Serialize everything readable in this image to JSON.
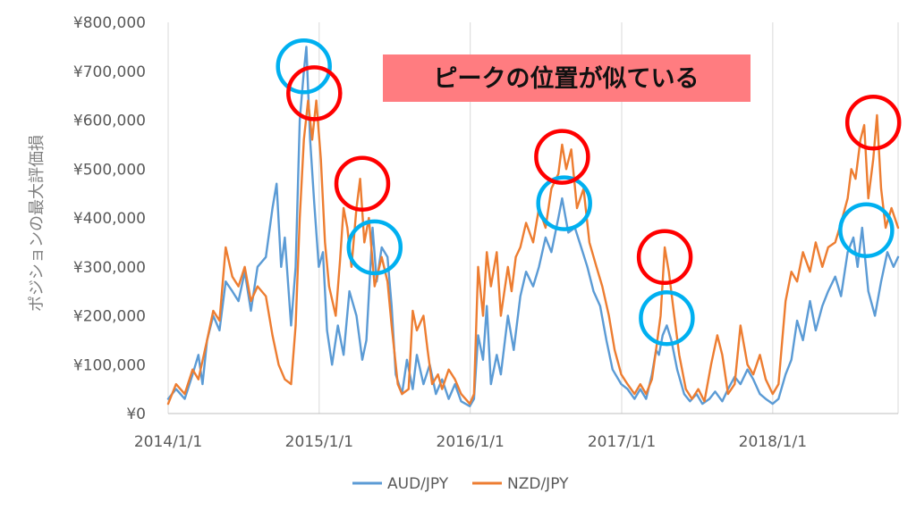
{
  "chart_data": {
    "type": "line",
    "ylabel": "ポジションの最大評価損",
    "xlabel": "",
    "x_ticks": [
      "2014/1/1",
      "2015/1/1",
      "2016/1/1",
      "2017/1/1",
      "2018/1/1"
    ],
    "x_range": [
      "2014/1/1",
      "2018/10/31"
    ],
    "y_ticks": [
      "¥0",
      "¥100,000",
      "¥200,000",
      "¥300,000",
      "¥400,000",
      "¥500,000",
      "¥600,000",
      "¥700,000",
      "¥800,000"
    ],
    "ylim": [
      0,
      800000
    ],
    "grid": "vertical-at-year-ticks",
    "legend": "bottom",
    "annotation": "ピークの位置が似ている",
    "colors": {
      "aud": "#5B9BD5",
      "nzd": "#ED7D31",
      "aud_circle": "#00B0F0",
      "nzd_circle": "#FF0000",
      "annotation_bg": "#FF7C80"
    },
    "series": [
      {
        "name": "AUD/JPY",
        "key": "aud",
        "points": [
          [
            "2014/1/1",
            30000
          ],
          [
            "2014/1/20",
            50000
          ],
          [
            "2014/2/10",
            30000
          ],
          [
            "2014/3/1",
            80000
          ],
          [
            "2014/3/15",
            120000
          ],
          [
            "2014/3/25",
            60000
          ],
          [
            "2014/4/5",
            150000
          ],
          [
            "2014/4/20",
            200000
          ],
          [
            "2014/5/5",
            170000
          ],
          [
            "2014/5/20",
            270000
          ],
          [
            "2014/6/5",
            250000
          ],
          [
            "2014/6/20",
            230000
          ],
          [
            "2014/7/5",
            290000
          ],
          [
            "2014/7/20",
            210000
          ],
          [
            "2014/8/5",
            300000
          ],
          [
            "2014/8/25",
            320000
          ],
          [
            "2014/9/10",
            420000
          ],
          [
            "2014/9/20",
            470000
          ],
          [
            "2014/10/1",
            300000
          ],
          [
            "2014/10/10",
            360000
          ],
          [
            "2014/10/25",
            180000
          ],
          [
            "2014/11/5",
            300000
          ],
          [
            "2014/11/15",
            600000
          ],
          [
            "2014/11/25",
            700000
          ],
          [
            "2014/12/1",
            750000
          ],
          [
            "2014/12/10",
            560000
          ],
          [
            "2014/12/20",
            430000
          ],
          [
            "2014/12/31",
            300000
          ],
          [
            "2015/1/10",
            330000
          ],
          [
            "2015/1/20",
            170000
          ],
          [
            "2015/2/1",
            100000
          ],
          [
            "2015/2/15",
            180000
          ],
          [
            "2015/3/1",
            120000
          ],
          [
            "2015/3/15",
            250000
          ],
          [
            "2015/4/1",
            200000
          ],
          [
            "2015/4/15",
            110000
          ],
          [
            "2015/4/25",
            150000
          ],
          [
            "2015/5/10",
            380000
          ],
          [
            "2015/5/20",
            270000
          ],
          [
            "2015/6/1",
            340000
          ],
          [
            "2015/6/15",
            320000
          ],
          [
            "2015/6/25",
            220000
          ],
          [
            "2015/7/5",
            80000
          ],
          [
            "2015/7/20",
            40000
          ],
          [
            "2015/8/1",
            110000
          ],
          [
            "2015/8/15",
            50000
          ],
          [
            "2015/8/25",
            120000
          ],
          [
            "2015/9/10",
            60000
          ],
          [
            "2015/9/25",
            100000
          ],
          [
            "2015/10/10",
            40000
          ],
          [
            "2015/10/25",
            70000
          ],
          [
            "2015/11/10",
            30000
          ],
          [
            "2015/11/25",
            60000
          ],
          [
            "2015/12/10",
            25000
          ],
          [
            "2015/12/31",
            15000
          ],
          [
            "2016/1/10",
            30000
          ],
          [
            "2016/1/20",
            160000
          ],
          [
            "2016/2/1",
            110000
          ],
          [
            "2016/2/10",
            220000
          ],
          [
            "2016/2/20",
            60000
          ],
          [
            "2016/3/5",
            120000
          ],
          [
            "2016/3/15",
            80000
          ],
          [
            "2016/4/1",
            200000
          ],
          [
            "2016/4/15",
            130000
          ],
          [
            "2016/5/1",
            240000
          ],
          [
            "2016/5/15",
            290000
          ],
          [
            "2016/6/1",
            260000
          ],
          [
            "2016/6/15",
            300000
          ],
          [
            "2016/7/1",
            360000
          ],
          [
            "2016/7/15",
            330000
          ],
          [
            "2016/8/1",
            400000
          ],
          [
            "2016/8/10",
            440000
          ],
          [
            "2016/8/25",
            370000
          ],
          [
            "2016/9/10",
            380000
          ],
          [
            "2016/9/25",
            340000
          ],
          [
            "2016/10/10",
            300000
          ],
          [
            "2016/10/25",
            250000
          ],
          [
            "2016/11/10",
            220000
          ],
          [
            "2016/11/25",
            150000
          ],
          [
            "2016/12/10",
            90000
          ],
          [
            "2016/12/31",
            60000
          ],
          [
            "2017/1/15",
            50000
          ],
          [
            "2017/2/1",
            30000
          ],
          [
            "2017/2/15",
            50000
          ],
          [
            "2017/3/1",
            30000
          ],
          [
            "2017/3/15",
            80000
          ],
          [
            "2017/3/25",
            130000
          ],
          [
            "2017/4/1",
            120000
          ],
          [
            "2017/4/10",
            160000
          ],
          [
            "2017/4/20",
            180000
          ],
          [
            "2017/5/1",
            150000
          ],
          [
            "2017/5/15",
            90000
          ],
          [
            "2017/6/1",
            40000
          ],
          [
            "2017/6/15",
            25000
          ],
          [
            "2017/7/1",
            40000
          ],
          [
            "2017/7/15",
            20000
          ],
          [
            "2017/8/1",
            30000
          ],
          [
            "2017/8/15",
            45000
          ],
          [
            "2017/9/1",
            25000
          ],
          [
            "2017/9/15",
            50000
          ],
          [
            "2017/10/1",
            75000
          ],
          [
            "2017/10/15",
            60000
          ],
          [
            "2017/11/1",
            90000
          ],
          [
            "2017/11/15",
            70000
          ],
          [
            "2017/12/1",
            40000
          ],
          [
            "2017/12/15",
            30000
          ],
          [
            "2018/1/1",
            20000
          ],
          [
            "2018/1/15",
            30000
          ],
          [
            "2018/2/1",
            80000
          ],
          [
            "2018/2/15",
            110000
          ],
          [
            "2018/3/1",
            190000
          ],
          [
            "2018/3/15",
            150000
          ],
          [
            "2018/4/1",
            230000
          ],
          [
            "2018/4/15",
            170000
          ],
          [
            "2018/5/1",
            220000
          ],
          [
            "2018/5/15",
            250000
          ],
          [
            "2018/6/1",
            280000
          ],
          [
            "2018/6/15",
            240000
          ],
          [
            "2018/7/1",
            330000
          ],
          [
            "2018/7/15",
            360000
          ],
          [
            "2018/7/25",
            300000
          ],
          [
            "2018/8/5",
            380000
          ],
          [
            "2018/8/20",
            250000
          ],
          [
            "2018/9/5",
            200000
          ],
          [
            "2018/9/20",
            270000
          ],
          [
            "2018/10/5",
            330000
          ],
          [
            "2018/10/20",
            300000
          ],
          [
            "2018/10/31",
            320000
          ]
        ]
      },
      {
        "name": "NZD/JPY",
        "key": "nzd",
        "points": [
          [
            "2014/1/1",
            20000
          ],
          [
            "2014/1/20",
            60000
          ],
          [
            "2014/2/10",
            40000
          ],
          [
            "2014/3/1",
            90000
          ],
          [
            "2014/3/15",
            70000
          ],
          [
            "2014/4/5",
            150000
          ],
          [
            "2014/4/20",
            210000
          ],
          [
            "2014/5/5",
            190000
          ],
          [
            "2014/5/20",
            340000
          ],
          [
            "2014/6/5",
            280000
          ],
          [
            "2014/6/20",
            260000
          ],
          [
            "2014/7/5",
            300000
          ],
          [
            "2014/7/20",
            230000
          ],
          [
            "2014/8/5",
            260000
          ],
          [
            "2014/8/25",
            240000
          ],
          [
            "2014/9/10",
            160000
          ],
          [
            "2014/9/25",
            100000
          ],
          [
            "2014/10/10",
            70000
          ],
          [
            "2014/10/25",
            60000
          ],
          [
            "2014/11/5",
            180000
          ],
          [
            "2014/11/15",
            400000
          ],
          [
            "2014/11/25",
            560000
          ],
          [
            "2014/12/5",
            640000
          ],
          [
            "2014/12/15",
            560000
          ],
          [
            "2014/12/25",
            640000
          ],
          [
            "2015/1/5",
            520000
          ],
          [
            "2015/1/15",
            350000
          ],
          [
            "2015/1/25",
            260000
          ],
          [
            "2015/2/10",
            200000
          ],
          [
            "2015/2/20",
            310000
          ],
          [
            "2015/3/1",
            420000
          ],
          [
            "2015/3/10",
            380000
          ],
          [
            "2015/3/20",
            300000
          ],
          [
            "2015/4/1",
            420000
          ],
          [
            "2015/4/10",
            480000
          ],
          [
            "2015/4/20",
            350000
          ],
          [
            "2015/5/1",
            400000
          ],
          [
            "2015/5/15",
            260000
          ],
          [
            "2015/6/1",
            320000
          ],
          [
            "2015/6/15",
            270000
          ],
          [
            "2015/6/25",
            180000
          ],
          [
            "2015/7/10",
            60000
          ],
          [
            "2015/7/20",
            40000
          ],
          [
            "2015/8/5",
            50000
          ],
          [
            "2015/8/15",
            210000
          ],
          [
            "2015/8/25",
            170000
          ],
          [
            "2015/9/10",
            200000
          ],
          [
            "2015/9/20",
            130000
          ],
          [
            "2015/10/1",
            60000
          ],
          [
            "2015/10/15",
            80000
          ],
          [
            "2015/10/25",
            50000
          ],
          [
            "2015/11/10",
            90000
          ],
          [
            "2015/11/25",
            70000
          ],
          [
            "2015/12/10",
            40000
          ],
          [
            "2015/12/31",
            20000
          ],
          [
            "2016/1/10",
            40000
          ],
          [
            "2016/1/20",
            300000
          ],
          [
            "2016/2/1",
            200000
          ],
          [
            "2016/2/10",
            330000
          ],
          [
            "2016/2/20",
            260000
          ],
          [
            "2016/3/5",
            330000
          ],
          [
            "2016/3/15",
            200000
          ],
          [
            "2016/4/1",
            300000
          ],
          [
            "2016/4/10",
            250000
          ],
          [
            "2016/4/20",
            320000
          ],
          [
            "2016/5/1",
            340000
          ],
          [
            "2016/5/15",
            390000
          ],
          [
            "2016/6/1",
            350000
          ],
          [
            "2016/6/15",
            420000
          ],
          [
            "2016/7/1",
            380000
          ],
          [
            "2016/7/15",
            460000
          ],
          [
            "2016/8/1",
            490000
          ],
          [
            "2016/8/10",
            550000
          ],
          [
            "2016/8/20",
            500000
          ],
          [
            "2016/9/1",
            540000
          ],
          [
            "2016/9/15",
            420000
          ],
          [
            "2016/10/1",
            460000
          ],
          [
            "2016/10/15",
            350000
          ],
          [
            "2016/11/1",
            300000
          ],
          [
            "2016/11/15",
            260000
          ],
          [
            "2016/12/1",
            200000
          ],
          [
            "2016/12/15",
            130000
          ],
          [
            "2016/12/31",
            80000
          ],
          [
            "2017/1/15",
            60000
          ],
          [
            "2017/2/1",
            40000
          ],
          [
            "2017/2/15",
            60000
          ],
          [
            "2017/3/1",
            40000
          ],
          [
            "2017/3/15",
            70000
          ],
          [
            "2017/3/25",
            130000
          ],
          [
            "2017/4/5",
            200000
          ],
          [
            "2017/4/15",
            340000
          ],
          [
            "2017/4/25",
            290000
          ],
          [
            "2017/5/5",
            220000
          ],
          [
            "2017/5/20",
            120000
          ],
          [
            "2017/6/5",
            50000
          ],
          [
            "2017/6/20",
            30000
          ],
          [
            "2017/7/5",
            50000
          ],
          [
            "2017/7/20",
            25000
          ],
          [
            "2017/8/5",
            100000
          ],
          [
            "2017/8/20",
            160000
          ],
          [
            "2017/9/1",
            120000
          ],
          [
            "2017/9/15",
            40000
          ],
          [
            "2017/10/1",
            60000
          ],
          [
            "2017/10/15",
            180000
          ],
          [
            "2017/11/1",
            100000
          ],
          [
            "2017/11/15",
            80000
          ],
          [
            "2017/12/1",
            120000
          ],
          [
            "2017/12/15",
            70000
          ],
          [
            "2018/1/1",
            40000
          ],
          [
            "2018/1/15",
            60000
          ],
          [
            "2018/2/1",
            230000
          ],
          [
            "2018/2/15",
            290000
          ],
          [
            "2018/3/1",
            270000
          ],
          [
            "2018/3/15",
            330000
          ],
          [
            "2018/4/1",
            290000
          ],
          [
            "2018/4/15",
            350000
          ],
          [
            "2018/5/1",
            300000
          ],
          [
            "2018/5/15",
            340000
          ],
          [
            "2018/6/1",
            350000
          ],
          [
            "2018/6/15",
            390000
          ],
          [
            "2018/7/1",
            440000
          ],
          [
            "2018/7/10",
            500000
          ],
          [
            "2018/7/20",
            480000
          ],
          [
            "2018/8/1",
            560000
          ],
          [
            "2018/8/10",
            590000
          ],
          [
            "2018/8/20",
            440000
          ],
          [
            "2018/9/1",
            520000
          ],
          [
            "2018/9/10",
            610000
          ],
          [
            "2018/9/20",
            460000
          ],
          [
            "2018/10/1",
            380000
          ],
          [
            "2018/10/15",
            420000
          ],
          [
            "2018/10/31",
            380000
          ]
        ]
      }
    ],
    "highlights": [
      {
        "series": "aud",
        "at": [
          "2014/11/25",
          710000
        ]
      },
      {
        "series": "aud",
        "at": [
          "2015/5/15",
          340000
        ]
      },
      {
        "series": "aud",
        "at": [
          "2016/8/15",
          430000
        ]
      },
      {
        "series": "aud",
        "at": [
          "2017/4/20",
          195000
        ]
      },
      {
        "series": "aud",
        "at": [
          "2018/8/15",
          375000
        ]
      },
      {
        "series": "nzd",
        "at": [
          "2014/12/20",
          655000
        ]
      },
      {
        "series": "nzd",
        "at": [
          "2015/4/15",
          470000
        ]
      },
      {
        "series": "nzd",
        "at": [
          "2016/8/10",
          525000
        ]
      },
      {
        "series": "nzd",
        "at": [
          "2017/4/15",
          320000
        ]
      },
      {
        "series": "nzd",
        "at": [
          "2018/9/1",
          595000
        ]
      }
    ]
  }
}
